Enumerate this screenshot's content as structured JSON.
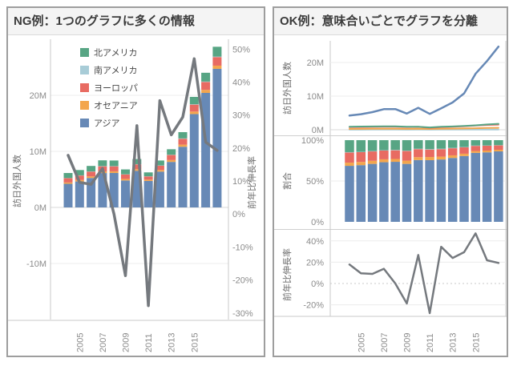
{
  "panels": [
    {
      "id": "ng",
      "title": "NG例：1つのグラフに多くの情報"
    },
    {
      "id": "ok",
      "title": "OK例：意味合いごとでグラフを分離"
    }
  ],
  "colors": {
    "north_america": "#57A584",
    "south_america": "#A8CCD7",
    "europe": "#E86B62",
    "oceania": "#F3A64D",
    "asia": "#6789B6",
    "growth_line": "#75797E",
    "tick_text": "#8B8B8B",
    "axis_title_text": "#6B6B6B",
    "grid": "#ECECEC",
    "zero_line": "#D9D9D9",
    "axis_line": "#C9C9C9",
    "separator": "#CFCFCF"
  },
  "chart_data": [
    {
      "id": "ng-combo",
      "type": "bar",
      "subtype": "stacked-bars-with-line-dual-axis",
      "unit": "millions of visitors",
      "categories": [
        2004,
        2005,
        2006,
        2007,
        2008,
        2009,
        2010,
        2011,
        2012,
        2013,
        2014,
        2015,
        2016,
        2017
      ],
      "x_tick_labels": [
        "2005",
        "2007",
        "2009",
        "2011",
        "2013",
        "2015"
      ],
      "series": [
        {
          "name": "北アメリカ",
          "color": "north_america",
          "values": [
            0.9,
            0.95,
            0.98,
            1.03,
            1.0,
            0.87,
            0.91,
            0.69,
            0.88,
            0.98,
            1.12,
            1.31,
            1.57,
            1.76
          ]
        },
        {
          "name": "南アメリカ",
          "color": "south_america",
          "values": [
            0.03,
            0.03,
            0.04,
            0.04,
            0.04,
            0.03,
            0.04,
            0.03,
            0.04,
            0.05,
            0.06,
            0.07,
            0.07,
            0.08
          ]
        },
        {
          "name": "ヨーロッパ",
          "color": "europe",
          "values": [
            0.76,
            0.8,
            0.85,
            0.9,
            0.89,
            0.8,
            0.85,
            0.57,
            0.77,
            0.9,
            1.05,
            1.24,
            1.42,
            1.53
          ]
        },
        {
          "name": "オセアニア",
          "color": "oceania",
          "values": [
            0.24,
            0.26,
            0.28,
            0.3,
            0.29,
            0.27,
            0.3,
            0.24,
            0.29,
            0.33,
            0.38,
            0.45,
            0.53,
            0.57
          ]
        },
        {
          "name": "アジア",
          "color": "asia",
          "values": [
            4.21,
            4.63,
            5.25,
            6.13,
            6.15,
            4.81,
            6.53,
            4.72,
            6.39,
            8.12,
            10.82,
            16.65,
            20.43,
            24.72
          ]
        }
      ],
      "stack_order_bottom_to_top": [
        "アジア",
        "オセアニア",
        "ヨーロッパ",
        "南アメリカ",
        "北アメリカ"
      ],
      "line_series": {
        "name": "前年比伸長率",
        "axis": "right",
        "values": [
          17.8,
          9.6,
          9.0,
          13.8,
          0.0,
          -18.7,
          26.8,
          -27.8,
          34.4,
          24.0,
          29.4,
          47.1,
          21.8,
          19.3
        ]
      },
      "left_axis": {
        "label": "訪日外国人数",
        "ticks": [
          "20M",
          "10M",
          "0M",
          "-10M"
        ],
        "tick_values": [
          20,
          10,
          0,
          -10
        ],
        "range": [
          -20,
          30
        ]
      },
      "right_axis": {
        "label": "前年比伸長率",
        "ticks": [
          "50%",
          "40%",
          "30%",
          "20%",
          "10%",
          "0%",
          "-10%",
          "-20%",
          "-30%"
        ],
        "tick_values": [
          50,
          40,
          30,
          20,
          10,
          0,
          -10,
          -20,
          -30
        ],
        "range": [
          -32,
          53
        ]
      },
      "legend": {
        "position": "top-left-inside",
        "items": [
          "北アメリカ",
          "南アメリカ",
          "ヨーロッパ",
          "オセアニア",
          "アジア"
        ]
      },
      "grid": "horizontal-left-axis-only"
    },
    {
      "id": "ok-visitors-lines",
      "type": "line",
      "unit": "millions of visitors",
      "categories": [
        2004,
        2005,
        2006,
        2007,
        2008,
        2009,
        2010,
        2011,
        2012,
        2013,
        2014,
        2015,
        2016,
        2017
      ],
      "series": [
        {
          "name": "アジア",
          "color": "asia",
          "values": [
            4.21,
            4.63,
            5.25,
            6.13,
            6.15,
            4.81,
            6.53,
            4.72,
            6.39,
            8.12,
            10.82,
            16.65,
            20.43,
            24.72
          ]
        },
        {
          "name": "北アメリカ",
          "color": "north_america",
          "values": [
            0.9,
            0.95,
            0.98,
            1.03,
            1.0,
            0.87,
            0.91,
            0.69,
            0.88,
            0.98,
            1.12,
            1.31,
            1.57,
            1.76
          ]
        },
        {
          "name": "ヨーロッパ",
          "color": "europe",
          "values": [
            0.76,
            0.8,
            0.85,
            0.9,
            0.89,
            0.8,
            0.85,
            0.57,
            0.77,
            0.9,
            1.05,
            1.24,
            1.42,
            1.53
          ]
        },
        {
          "name": "オセアニア",
          "color": "oceania",
          "values": [
            0.24,
            0.26,
            0.28,
            0.3,
            0.29,
            0.27,
            0.3,
            0.24,
            0.29,
            0.33,
            0.38,
            0.45,
            0.53,
            0.57
          ]
        },
        {
          "name": "南アメリカ",
          "color": "south_america",
          "values": [
            0.03,
            0.03,
            0.04,
            0.04,
            0.04,
            0.03,
            0.04,
            0.03,
            0.04,
            0.05,
            0.06,
            0.07,
            0.07,
            0.08
          ]
        }
      ],
      "y_axis": {
        "label": "訪日外国人数",
        "ticks": [
          "20M",
          "10M",
          "0M"
        ],
        "tick_values": [
          20,
          10,
          0
        ],
        "range": [
          -1.5,
          26.5
        ]
      },
      "grid": "on"
    },
    {
      "id": "ok-share-bars",
      "type": "bar",
      "subtype": "100%-stacked",
      "unit": "percent of yearly total",
      "categories": [
        2004,
        2005,
        2006,
        2007,
        2008,
        2009,
        2010,
        2011,
        2012,
        2013,
        2014,
        2015,
        2016,
        2017
      ],
      "series": [
        {
          "name": "アジア",
          "color": "asia",
          "values": [
            4.21,
            4.63,
            5.25,
            6.13,
            6.15,
            4.81,
            6.53,
            4.72,
            6.39,
            8.12,
            10.82,
            16.65,
            20.43,
            24.72
          ]
        },
        {
          "name": "オセアニア",
          "color": "oceania",
          "values": [
            0.24,
            0.26,
            0.28,
            0.3,
            0.29,
            0.27,
            0.3,
            0.24,
            0.29,
            0.33,
            0.38,
            0.45,
            0.53,
            0.57
          ]
        },
        {
          "name": "ヨーロッパ",
          "color": "europe",
          "values": [
            0.76,
            0.8,
            0.85,
            0.9,
            0.89,
            0.8,
            0.85,
            0.57,
            0.77,
            0.9,
            1.05,
            1.24,
            1.42,
            1.53
          ]
        },
        {
          "name": "南アメリカ",
          "color": "south_america",
          "values": [
            0.03,
            0.03,
            0.04,
            0.04,
            0.04,
            0.03,
            0.04,
            0.03,
            0.04,
            0.05,
            0.06,
            0.07,
            0.07,
            0.08
          ]
        },
        {
          "name": "北アメリカ",
          "color": "north_america",
          "values": [
            0.9,
            0.95,
            0.98,
            1.03,
            1.0,
            0.87,
            0.91,
            0.69,
            0.88,
            0.98,
            1.12,
            1.31,
            1.57,
            1.76
          ]
        }
      ],
      "stack_order_bottom_to_top": [
        "アジア",
        "オセアニア",
        "ヨーロッパ",
        "南アメリカ",
        "北アメリカ"
      ],
      "y_axis": {
        "label": "割合",
        "ticks": [
          "100%",
          "50%",
          "0%"
        ],
        "tick_values": [
          100,
          50,
          0
        ],
        "range": [
          0,
          100
        ]
      }
    },
    {
      "id": "ok-growth-line",
      "type": "line",
      "unit": "percent year-over-year",
      "categories": [
        2004,
        2005,
        2006,
        2007,
        2008,
        2009,
        2010,
        2011,
        2012,
        2013,
        2014,
        2015,
        2016,
        2017
      ],
      "series": [
        {
          "name": "前年比伸長率",
          "color": "growth_line",
          "values": [
            17.8,
            9.6,
            9.0,
            13.8,
            0.0,
            -18.7,
            26.8,
            -27.8,
            34.4,
            24.0,
            29.4,
            47.1,
            21.8,
            19.3
          ]
        }
      ],
      "y_axis": {
        "label": "前年比伸長率",
        "ticks": [
          "40%",
          "20%",
          "0%",
          "-20%"
        ],
        "tick_values": [
          40,
          20,
          0,
          -20
        ],
        "range": [
          -31,
          49
        ]
      },
      "x_axis": {
        "ticks": [
          "2005",
          "2007",
          "2009",
          "2011",
          "2013",
          "2015"
        ]
      },
      "zero_line_style": "dotted"
    }
  ]
}
